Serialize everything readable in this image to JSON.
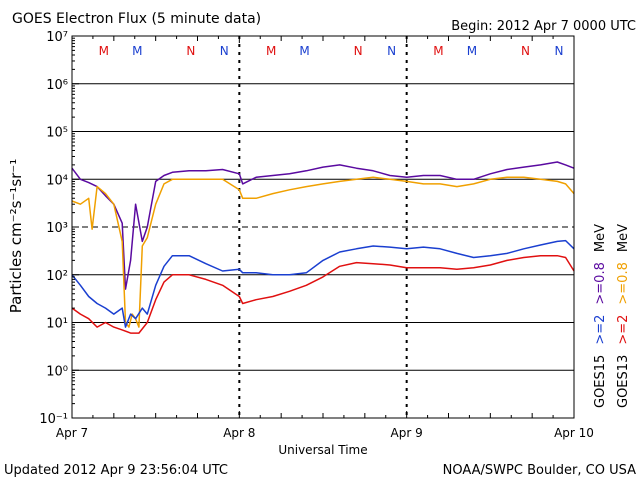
{
  "header": {
    "title": "GOES Electron Flux (5 minute data)",
    "begin": "Begin: 2012 Apr 7 0000 UTC"
  },
  "footer": {
    "updated": "Updated 2012 Apr  9 23:56:04 UTC",
    "credit": "NOAA/SWPC Boulder, CO USA"
  },
  "colors": {
    "ge2_goes15": "#1a3fd0",
    "ge08_goes15": "#5a0aa0",
    "ge2_goes13": "#e01010",
    "ge08_goes13": "#f0a000",
    "marker_M": "#e01010",
    "marker_N": "#1a3fd0"
  },
  "chart_data": {
    "type": "line",
    "title": "GOES Electron Flux (5 minute data)",
    "xlabel": "Universal Time",
    "ylabel": "Particles cm⁻²s⁻¹sr⁻¹",
    "ylim": [
      0.1,
      10000000
    ],
    "yscale": "log",
    "y_tick_labels": [
      "10⁻¹",
      "10⁰",
      "10¹",
      "10²",
      "10³",
      "10⁴",
      "10⁵",
      "10⁶",
      "10⁷"
    ],
    "x_ticks": [
      "Apr 7",
      "Apr 8",
      "Apr 9",
      "Apr 10"
    ],
    "xlim_days": [
      0,
      3
    ],
    "grid": "horizontal solid lines at decades, dashed at 10^3; vertical dashed lines at day boundaries",
    "legend_right": [
      {
        "label": ">=2",
        "color": "#1a3fd0"
      },
      {
        "label": ">=0.8",
        "color": "#5a0aa0"
      },
      {
        "label": "MeV",
        "color": "#000000"
      },
      {
        "label": "GOES15",
        "color": "#000000"
      },
      {
        "label": ">=2",
        "color": "#e01010"
      },
      {
        "label": ">=0.8",
        "color": "#f0a000"
      },
      {
        "label": "MeV",
        "color": "#000000"
      },
      {
        "label": "GOES13",
        "color": "#000000"
      }
    ],
    "markers": [
      {
        "label": "M",
        "day": 0.19,
        "color": "#e01010"
      },
      {
        "label": "M",
        "day": 0.39,
        "color": "#1a3fd0"
      },
      {
        "label": "N",
        "day": 0.71,
        "color": "#e01010"
      },
      {
        "label": "N",
        "day": 0.91,
        "color": "#1a3fd0"
      },
      {
        "label": "M",
        "day": 1.19,
        "color": "#e01010"
      },
      {
        "label": "M",
        "day": 1.39,
        "color": "#1a3fd0"
      },
      {
        "label": "N",
        "day": 1.71,
        "color": "#e01010"
      },
      {
        "label": "N",
        "day": 1.91,
        "color": "#1a3fd0"
      },
      {
        "label": "M",
        "day": 2.19,
        "color": "#e01010"
      },
      {
        "label": "M",
        "day": 2.39,
        "color": "#1a3fd0"
      },
      {
        "label": "N",
        "day": 2.71,
        "color": "#e01010"
      },
      {
        "label": "N",
        "day": 2.91,
        "color": "#1a3fd0"
      }
    ],
    "series": [
      {
        "label": ">=0.8 MeV GOES15",
        "color": "#5a0aa0",
        "day": [
          0,
          0.05,
          0.1,
          0.15,
          0.2,
          0.25,
          0.3,
          0.32,
          0.35,
          0.38,
          0.42,
          0.45,
          0.5,
          0.55,
          0.6,
          0.7,
          0.8,
          0.9,
          1.0,
          1.02,
          1.1,
          1.2,
          1.3,
          1.4,
          1.5,
          1.6,
          1.7,
          1.8,
          1.9,
          2.0,
          2.1,
          2.2,
          2.3,
          2.4,
          2.5,
          2.6,
          2.7,
          2.8,
          2.9,
          2.95,
          3.0
        ],
        "value": [
          17000,
          10000,
          8500,
          7000,
          4500,
          3000,
          1200,
          50,
          200,
          3000,
          500,
          1000,
          9000,
          12000,
          14000,
          15000,
          15000,
          16000,
          13000,
          8000,
          11000,
          12000,
          13000,
          15000,
          18000,
          20000,
          17000,
          15000,
          12000,
          11000,
          12000,
          12000,
          10000,
          10000,
          13000,
          16000,
          18000,
          20000,
          23000,
          20000,
          17000
        ]
      },
      {
        "label": ">=0.8 MeV GOES13",
        "color": "#f0a000",
        "day": [
          0,
          0.05,
          0.1,
          0.12,
          0.15,
          0.2,
          0.25,
          0.3,
          0.32,
          0.34,
          0.36,
          0.38,
          0.4,
          0.42,
          0.45,
          0.5,
          0.55,
          0.6,
          0.7,
          0.8,
          0.9,
          1.0,
          1.02,
          1.1,
          1.2,
          1.3,
          1.4,
          1.5,
          1.6,
          1.7,
          1.8,
          1.9,
          2.0,
          2.1,
          2.2,
          2.3,
          2.4,
          2.5,
          2.6,
          2.7,
          2.8,
          2.9,
          2.95,
          3.0
        ],
        "value": [
          3500,
          3000,
          4000,
          900,
          7000,
          5000,
          3000,
          500,
          10,
          8,
          15,
          12,
          8,
          400,
          600,
          3000,
          8000,
          10000,
          10000,
          10000,
          10000,
          6000,
          4000,
          4000,
          5000,
          6000,
          7000,
          8000,
          9000,
          10000,
          11000,
          10000,
          9000,
          8000,
          8000,
          7000,
          8000,
          10000,
          11000,
          11000,
          10000,
          9000,
          8000,
          5000
        ]
      },
      {
        "label": ">=2 MeV GOES15",
        "color": "#1a3fd0",
        "day": [
          0,
          0.05,
          0.1,
          0.15,
          0.2,
          0.25,
          0.3,
          0.32,
          0.35,
          0.38,
          0.42,
          0.45,
          0.5,
          0.55,
          0.6,
          0.7,
          0.8,
          0.9,
          1.0,
          1.02,
          1.1,
          1.2,
          1.3,
          1.4,
          1.5,
          1.6,
          1.7,
          1.8,
          1.9,
          2.0,
          2.1,
          2.2,
          2.3,
          2.4,
          2.5,
          2.6,
          2.7,
          2.8,
          2.9,
          2.95,
          3.0
        ],
        "value": [
          100,
          60,
          35,
          25,
          20,
          15,
          20,
          8,
          15,
          12,
          20,
          15,
          60,
          150,
          250,
          250,
          170,
          120,
          130,
          110,
          110,
          100,
          100,
          110,
          200,
          300,
          350,
          400,
          380,
          350,
          380,
          350,
          280,
          230,
          250,
          280,
          350,
          420,
          500,
          520,
          350
        ]
      },
      {
        "label": ">=2 MeV GOES13",
        "color": "#e01010",
        "day": [
          0,
          0.05,
          0.1,
          0.15,
          0.2,
          0.25,
          0.3,
          0.35,
          0.4,
          0.45,
          0.5,
          0.55,
          0.6,
          0.7,
          0.8,
          0.9,
          1.0,
          1.02,
          1.1,
          1.2,
          1.3,
          1.4,
          1.5,
          1.6,
          1.7,
          1.8,
          1.9,
          2.0,
          2.1,
          2.2,
          2.3,
          2.4,
          2.5,
          2.6,
          2.7,
          2.8,
          2.9,
          2.95,
          3.0
        ],
        "value": [
          20,
          15,
          12,
          8,
          10,
          8,
          7,
          6,
          6,
          10,
          30,
          70,
          100,
          100,
          80,
          60,
          35,
          25,
          30,
          35,
          45,
          60,
          90,
          150,
          180,
          170,
          160,
          140,
          140,
          140,
          130,
          140,
          160,
          200,
          230,
          250,
          250,
          230,
          120
        ]
      }
    ]
  }
}
